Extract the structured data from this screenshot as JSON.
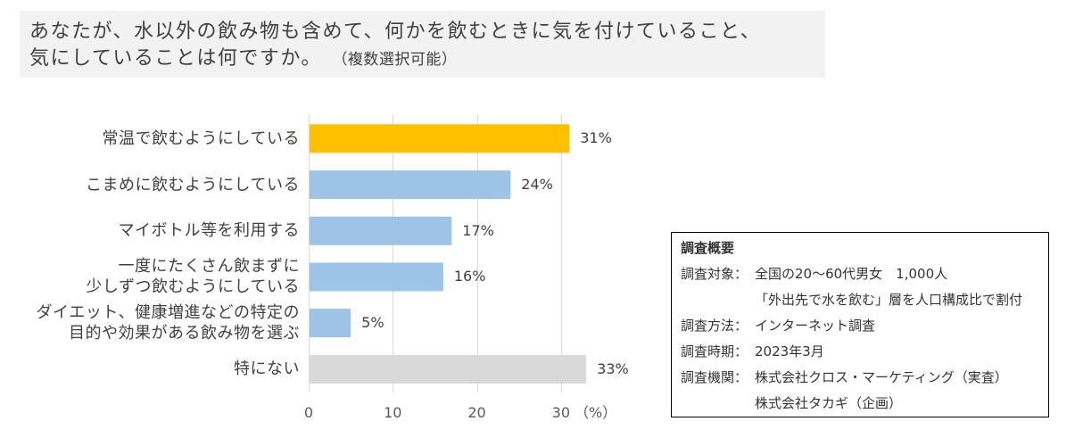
{
  "chart_data": {
    "type": "bar",
    "title_lines": [
      "あなたが、水以外の飲み物も含めて、何かを飲むときに気を付けていること、",
      "気にしていることは何ですか。"
    ],
    "title_note": "（複数選択可能）",
    "categories": [
      "常温で飲むようにしている",
      "こまめに飲むようにしている",
      "マイボトル等を利用する",
      "一度にたくさん飲まずに\n少しずつ飲むようにしている",
      "ダイエット、健康増進などの特定の\n目的や効果がある飲み物を選ぶ",
      "特にない"
    ],
    "values": [
      31,
      24,
      17,
      16,
      5,
      33
    ],
    "data_labels": [
      "31%",
      "24%",
      "17%",
      "16%",
      "5%",
      "33%"
    ],
    "colors": [
      "#FFC000",
      "#9DC3E6",
      "#9DC3E6",
      "#9DC3E6",
      "#9DC3E6",
      "#D9D9D9"
    ],
    "xlabel": "（%）",
    "ylabel": "",
    "xlim": [
      0,
      35
    ],
    "x_ticks": [
      0,
      10,
      20,
      30
    ],
    "x_tick_labels": [
      "0",
      "10",
      "20",
      "30"
    ],
    "grid": true,
    "grid_color": "#D9D9D9"
  },
  "survey": {
    "heading": "調査概要",
    "rows": [
      {
        "label": "調査対象：",
        "values": [
          "全国の20～60代男女　1,000人",
          "「外出先で水を飲む」層を人口構成比で割付"
        ]
      },
      {
        "label": "調査方法：",
        "values": [
          "インターネット調査"
        ]
      },
      {
        "label": "調査時期：",
        "values": [
          "2023年3月"
        ]
      },
      {
        "label": "調査機関：",
        "values": [
          "株式会社クロス・マーケティング（実査）",
          "株式会社タカギ（企画）"
        ]
      }
    ]
  },
  "theme": {
    "title_background": "#F2F2F2",
    "survey_border": "#000000"
  }
}
